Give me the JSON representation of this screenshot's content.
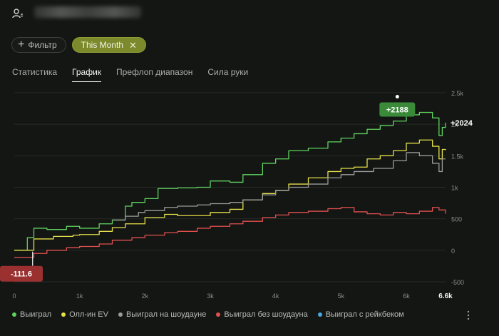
{
  "header": {
    "user_icon": "user-icon"
  },
  "filters": {
    "add_label": "Фильтр",
    "period_label": "This Month"
  },
  "tabs": [
    {
      "label": "Статистика",
      "active": false
    },
    {
      "label": "График",
      "active": true
    },
    {
      "label": "Префлоп диапазон",
      "active": false
    },
    {
      "label": "Сила руки",
      "active": false
    }
  ],
  "chart_data": {
    "type": "line",
    "xlim": [
      0,
      6600
    ],
    "ylim": [
      -500,
      2500
    ],
    "y_ticks": [
      "-500",
      "0",
      "500",
      "1k",
      "1.5k",
      "2k",
      "2.5k"
    ],
    "y_tick_values": [
      -500,
      0,
      500,
      1000,
      1500,
      2000,
      2500
    ],
    "x_ticks": [
      "0",
      "1k",
      "2k",
      "3k",
      "4k",
      "5k",
      "6k"
    ],
    "x_tick_values": [
      0,
      1000,
      2000,
      3000,
      4000,
      5000,
      6000
    ],
    "x_end_label": "6.6k",
    "grid": true,
    "legend_position": "bottom",
    "series": [
      {
        "name": "Выиграл",
        "color": "#5fd35f",
        "x": [
          0,
          200,
          300,
          500,
          800,
          1000,
          1300,
          1500,
          1700,
          1800,
          2000,
          2200,
          2500,
          2800,
          3000,
          3300,
          3500,
          3800,
          4000,
          4200,
          4500,
          4800,
          5000,
          5200,
          5400,
          5600,
          5800,
          6000,
          6200,
          6400,
          6500,
          6550,
          6600
        ],
        "y": [
          0,
          200,
          350,
          330,
          380,
          350,
          420,
          480,
          700,
          760,
          820,
          980,
          990,
          1000,
          1100,
          1080,
          1200,
          1380,
          1450,
          1580,
          1620,
          1720,
          1780,
          1850,
          1920,
          1980,
          2050,
          2150,
          2188,
          2100,
          1820,
          1950,
          2024
        ]
      },
      {
        "name": "Олл-ин EV",
        "color": "#e5e04a",
        "x": [
          0,
          300,
          600,
          900,
          1000,
          1300,
          1500,
          1700,
          2000,
          2300,
          2500,
          3000,
          3300,
          3500,
          3800,
          4000,
          4200,
          4500,
          4800,
          5000,
          5200,
          5400,
          5600,
          5800,
          6000,
          6200,
          6400,
          6500,
          6550,
          6600
        ],
        "y": [
          0,
          180,
          220,
          240,
          250,
          300,
          360,
          420,
          520,
          570,
          550,
          600,
          650,
          800,
          900,
          950,
          1050,
          1150,
          1250,
          1300,
          1320,
          1450,
          1500,
          1580,
          1700,
          1750,
          1650,
          1450,
          1600,
          1590
        ]
      },
      {
        "name": "Выиграл на шоудауне",
        "color": "#9a9c9a",
        "x": [
          1500,
          1700,
          1900,
          2000,
          2300,
          2500,
          2800,
          3000,
          3300,
          3500,
          3800,
          4000,
          4200,
          4500,
          4800,
          5000,
          5200,
          5500,
          5800,
          6000,
          6200,
          6400,
          6500,
          6550,
          6600
        ],
        "y": [
          480,
          540,
          600,
          630,
          680,
          700,
          720,
          740,
          760,
          800,
          880,
          950,
          1000,
          1050,
          1150,
          1200,
          1250,
          1300,
          1420,
          1550,
          1500,
          1380,
          1250,
          1450,
          1450
        ]
      },
      {
        "name": "Выиграл без шоудауна",
        "color": "#e05050",
        "x": [
          0,
          300,
          500,
          800,
          1000,
          1300,
          1500,
          1800,
          2000,
          2300,
          2500,
          2800,
          3000,
          3300,
          3500,
          3800,
          4000,
          4200,
          4500,
          4800,
          5000,
          5200,
          5400,
          5600,
          5800,
          6000,
          6200,
          6400,
          6500,
          6600
        ],
        "y": [
          -112,
          -50,
          0,
          40,
          60,
          100,
          160,
          200,
          240,
          280,
          300,
          350,
          380,
          420,
          460,
          520,
          560,
          600,
          620,
          660,
          680,
          610,
          580,
          560,
          600,
          580,
          620,
          680,
          640,
          580
        ]
      },
      {
        "name": "Выиграл с рейкбеком",
        "color": "#4aa8e0",
        "x": [],
        "y": []
      }
    ],
    "annotations": [
      {
        "text": "+2188",
        "x": 6200,
        "y": 2188,
        "kind": "max"
      },
      {
        "text": "-111.6",
        "x": 150,
        "y": -111.6,
        "kind": "min"
      },
      {
        "text": "+2024",
        "x": 6600,
        "y": 2024,
        "kind": "end"
      }
    ]
  },
  "colors": {
    "annotation_max_bg": "#3a8a3a",
    "annotation_min_bg": "#9a3030",
    "accent": "#7c8a2c"
  }
}
